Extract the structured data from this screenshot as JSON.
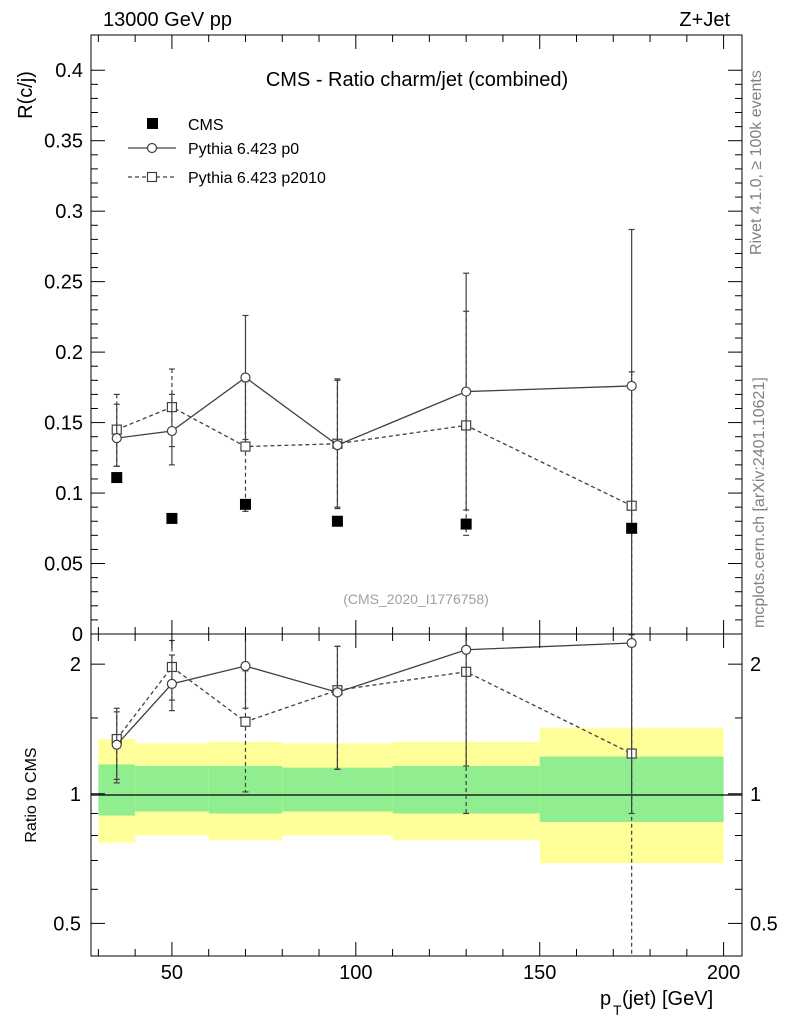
{
  "header": {
    "left": "13000 GeV pp",
    "right": "Z+Jet"
  },
  "side_labels": {
    "rivet": "Rivet 4.1.0, ≥ 100k events",
    "mcplots": "mcplots.cern.ch [arXiv:2401.10621]"
  },
  "chart_data": [
    {
      "type": "scatter",
      "panel": "main",
      "title": "CMS - Ratio charm/jet (combined)",
      "ylabel": "R(c/j)",
      "xlabel": "",
      "watermark": "(CMS_2020_I1776758)",
      "xlim": [
        28,
        205
      ],
      "ylim": [
        0,
        0.425
      ],
      "yticks": [
        0,
        0.05,
        0.1,
        0.15,
        0.2,
        0.25,
        0.3,
        0.35,
        0.4
      ],
      "ytick_labels": [
        "0",
        "0.05",
        "0.1",
        "0.15",
        "0.2",
        "0.25",
        "0.3",
        "0.35",
        "0.4"
      ],
      "legend_position": "top-left",
      "series": [
        {
          "name": "CMS",
          "style": "filled-square",
          "x": [
            35,
            50,
            70,
            95,
            130,
            175
          ],
          "values": [
            0.111,
            0.082,
            0.092,
            0.08,
            0.078,
            0.075
          ],
          "err_lo": [
            0.002,
            0.001,
            0.002,
            0.002,
            0.003,
            0.003
          ],
          "err_hi": [
            0.002,
            0.001,
            0.002,
            0.002,
            0.003,
            0.003
          ]
        },
        {
          "name": "Pythia 6.423 p0",
          "style": "solid-circle",
          "x": [
            35,
            50,
            70,
            95,
            130,
            175
          ],
          "values": [
            0.139,
            0.144,
            0.182,
            0.134,
            0.172,
            0.176
          ],
          "err_lo": [
            0.02,
            0.024,
            0.044,
            0.044,
            0.084,
            0.176
          ],
          "err_hi": [
            0.024,
            0.026,
            0.044,
            0.046,
            0.084,
            0.111
          ]
        },
        {
          "name": "Pythia 6.423 p2010",
          "style": "dashed-open-square",
          "x": [
            35,
            50,
            70,
            95,
            130,
            175
          ],
          "values": [
            0.145,
            0.161,
            0.133,
            0.135,
            0.148,
            0.091
          ],
          "err_lo": [
            0.026,
            0.028,
            0.046,
            0.046,
            0.078,
            0.091
          ],
          "err_hi": [
            0.025,
            0.027,
            0.046,
            0.046,
            0.081,
            0.095
          ]
        }
      ]
    },
    {
      "type": "scatter",
      "panel": "ratio",
      "ylabel": "Ratio to CMS",
      "xlabel_main": "p",
      "xlabel_sub": "T",
      "xlabel_rest": " (jet) [GeV]",
      "yscale": "log",
      "xlim": [
        28,
        205
      ],
      "ylim": [
        0.42,
        2.35
      ],
      "xticks": [
        50,
        100,
        150,
        200
      ],
      "xtick_labels": [
        "50",
        "100",
        "150",
        "200"
      ],
      "yticks": [
        0.5,
        1,
        2
      ],
      "ytick_labels": [
        "0.5",
        "1",
        "2"
      ],
      "bands": {
        "edges": [
          30,
          40,
          60,
          80,
          110,
          150,
          200
        ],
        "stat_lo": [
          0.89,
          0.91,
          0.9,
          0.91,
          0.9,
          0.86
        ],
        "stat_hi": [
          1.17,
          1.16,
          1.16,
          1.15,
          1.16,
          1.22
        ],
        "tot_lo": [
          0.77,
          0.8,
          0.78,
          0.8,
          0.78,
          0.69
        ],
        "tot_hi": [
          1.34,
          1.31,
          1.32,
          1.31,
          1.32,
          1.42
        ],
        "stat_color": "#90ee90",
        "tot_color": "#ffff99"
      },
      "series": [
        {
          "name": "Pythia 6.423 p0",
          "style": "solid-circle",
          "x": [
            35,
            50,
            70,
            95,
            130,
            175
          ],
          "values": [
            1.3,
            1.8,
            1.98,
            1.72,
            2.16,
            2.24
          ],
          "err_lo": [
            0.22,
            0.24,
            0.4,
            0.58,
            1.0,
            1.34
          ],
          "err_hi": [
            0.25,
            0.3,
            0.4,
            0.48,
            1.0,
            1.1
          ]
        },
        {
          "name": "Pythia 6.423 p2010",
          "style": "dashed-open-square",
          "x": [
            35,
            50,
            70,
            95,
            130,
            175
          ],
          "values": [
            1.34,
            1.97,
            1.47,
            1.74,
            1.92,
            1.24
          ],
          "err_lo": [
            0.28,
            0.32,
            0.46,
            0.6,
            1.02,
            1.24
          ],
          "err_hi": [
            0.24,
            0.3,
            0.46,
            0.46,
            1.1,
            1.1
          ]
        }
      ]
    }
  ]
}
